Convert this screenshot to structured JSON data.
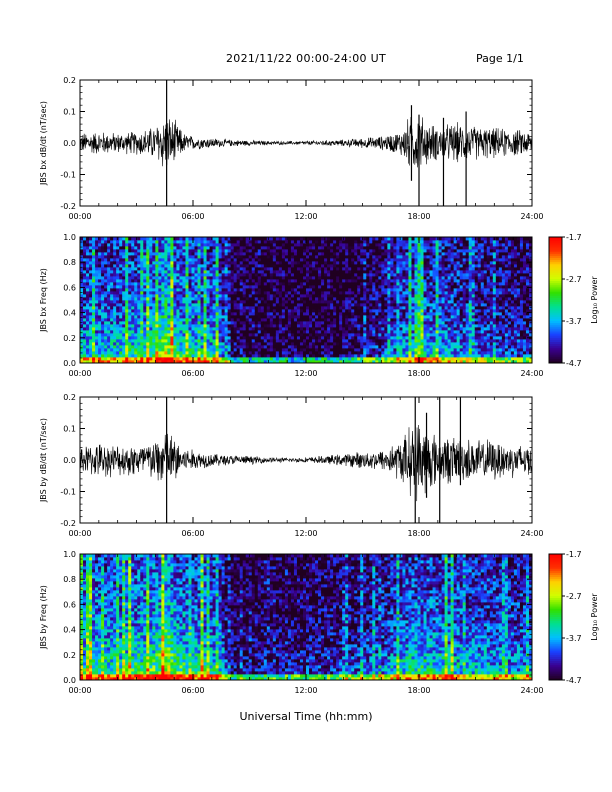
{
  "header": {
    "title": "2021/11/22  00:00-24:00 UT",
    "page": "Page 1/1"
  },
  "xaxis": {
    "label": "Universal Time (hh:mm)",
    "ticks": [
      "00:00",
      "06:00",
      "12:00",
      "18:00",
      "24:00"
    ]
  },
  "colors": {
    "trace": "#000000",
    "colormap": [
      "#200020",
      "#3a0090",
      "#1a40ff",
      "#00c0ff",
      "#00e090",
      "#30e000",
      "#d0ff00",
      "#ffd000",
      "#ff3000",
      "#ff0000"
    ]
  },
  "chart_data": [
    {
      "type": "line",
      "ylabel": "JBS bx dB/dt (nT/sec)",
      "xlim": [
        0,
        24
      ],
      "ylim": [
        -0.2,
        0.2
      ],
      "yticks": [
        "-0.2",
        "-0.1",
        "0.0",
        "0.1",
        "0.2"
      ],
      "xticks": [
        "00:00",
        "06:00",
        "12:00",
        "18:00",
        "24:00"
      ],
      "envelope": {
        "hours": [
          0,
          1,
          2,
          3,
          4,
          4.5,
          5,
          5.5,
          6,
          7,
          8,
          9,
          10,
          11,
          12,
          13,
          14,
          15,
          16,
          17,
          17.5,
          18,
          18.5,
          19,
          20,
          21,
          22,
          23,
          24
        ],
        "amplitude": [
          0.03,
          0.035,
          0.03,
          0.035,
          0.05,
          0.09,
          0.07,
          0.03,
          0.02,
          0.015,
          0.01,
          0.008,
          0.006,
          0.005,
          0.006,
          0.008,
          0.01,
          0.015,
          0.02,
          0.035,
          0.08,
          0.09,
          0.06,
          0.05,
          0.06,
          0.05,
          0.045,
          0.04,
          0.035
        ]
      },
      "spikes": [
        {
          "hour": 4.6,
          "max": 0.2,
          "min": -0.2
        },
        {
          "hour": 17.6,
          "max": 0.12,
          "min": -0.12
        },
        {
          "hour": 18.0,
          "max": 0.09,
          "min": -0.2
        },
        {
          "hour": 19.3,
          "max": 0.08,
          "min": -0.2
        },
        {
          "hour": 20.5,
          "max": 0.1,
          "min": -0.2
        }
      ]
    },
    {
      "type": "heatmap",
      "ylabel": "JBS bx Freq (Hz)",
      "xlim": [
        0,
        24
      ],
      "ylim": [
        0,
        1.0
      ],
      "yticks": [
        "0.0",
        "0.2",
        "0.4",
        "0.6",
        "0.8",
        "1.0"
      ],
      "xticks": [
        "00:00",
        "06:00",
        "12:00",
        "18:00",
        "24:00"
      ],
      "colorbar": {
        "label": "Log₁₀ Power",
        "ticks": [
          "-1.7",
          "-2.7",
          "-3.7",
          "-4.7"
        ],
        "range": [
          -4.7,
          -1.7
        ]
      },
      "activity_hours": [
        0,
        2,
        4,
        4.6,
        5,
        6,
        7.4,
        8,
        10,
        12,
        14,
        16,
        17,
        18,
        19,
        20,
        22,
        24
      ],
      "activity_level": [
        0.55,
        0.55,
        0.7,
        0.95,
        0.7,
        0.6,
        0.55,
        0.15,
        0.1,
        0.1,
        0.15,
        0.3,
        0.45,
        0.55,
        0.5,
        0.45,
        0.35,
        0.3
      ]
    },
    {
      "type": "line",
      "ylabel": "JBS by dB/dt (nT/sec)",
      "xlim": [
        0,
        24
      ],
      "ylim": [
        -0.2,
        0.2
      ],
      "yticks": [
        "-0.2",
        "-0.1",
        "0.0",
        "0.1",
        "0.2"
      ],
      "xticks": [
        "00:00",
        "06:00",
        "12:00",
        "18:00",
        "24:00"
      ],
      "envelope": {
        "hours": [
          0,
          1,
          2,
          3,
          4,
          4.5,
          5,
          5.5,
          6,
          7,
          8,
          9,
          10,
          11,
          12,
          13,
          14,
          15,
          16,
          17,
          17.5,
          18,
          18.5,
          19,
          20,
          21,
          22,
          23,
          24
        ],
        "amplitude": [
          0.04,
          0.05,
          0.045,
          0.05,
          0.06,
          0.1,
          0.07,
          0.04,
          0.03,
          0.02,
          0.015,
          0.012,
          0.008,
          0.006,
          0.008,
          0.012,
          0.018,
          0.025,
          0.03,
          0.06,
          0.1,
          0.12,
          0.1,
          0.07,
          0.07,
          0.06,
          0.06,
          0.05,
          0.05
        ]
      },
      "spikes": [
        {
          "hour": 4.6,
          "max": 0.2,
          "min": -0.2
        },
        {
          "hour": 17.8,
          "max": 0.2,
          "min": -0.2
        },
        {
          "hour": 18.4,
          "max": 0.15,
          "min": -0.12
        },
        {
          "hour": 19.1,
          "max": 0.2,
          "min": -0.2
        },
        {
          "hour": 20.2,
          "max": 0.2,
          "min": -0.08
        }
      ]
    },
    {
      "type": "heatmap",
      "ylabel": "JBS by Freq (Hz)",
      "xlim": [
        0,
        24
      ],
      "ylim": [
        0,
        1.0
      ],
      "yticks": [
        "0.0",
        "0.2",
        "0.4",
        "0.6",
        "0.8",
        "1.0"
      ],
      "xticks": [
        "00:00",
        "06:00",
        "12:00",
        "18:00",
        "24:00"
      ],
      "colorbar": {
        "label": "Log₁₀ Power",
        "ticks": [
          "-1.7",
          "-2.7",
          "-3.7",
          "-4.7"
        ],
        "range": [
          -4.7,
          -1.7
        ]
      },
      "activity_hours": [
        0,
        2,
        4,
        4.6,
        5,
        6,
        7.4,
        8,
        10,
        12,
        14,
        16,
        17,
        18,
        19,
        20,
        22,
        24
      ],
      "activity_level": [
        0.65,
        0.65,
        0.75,
        1.0,
        0.75,
        0.65,
        0.6,
        0.2,
        0.2,
        0.25,
        0.3,
        0.4,
        0.55,
        0.65,
        0.6,
        0.55,
        0.5,
        0.45
      ]
    }
  ]
}
